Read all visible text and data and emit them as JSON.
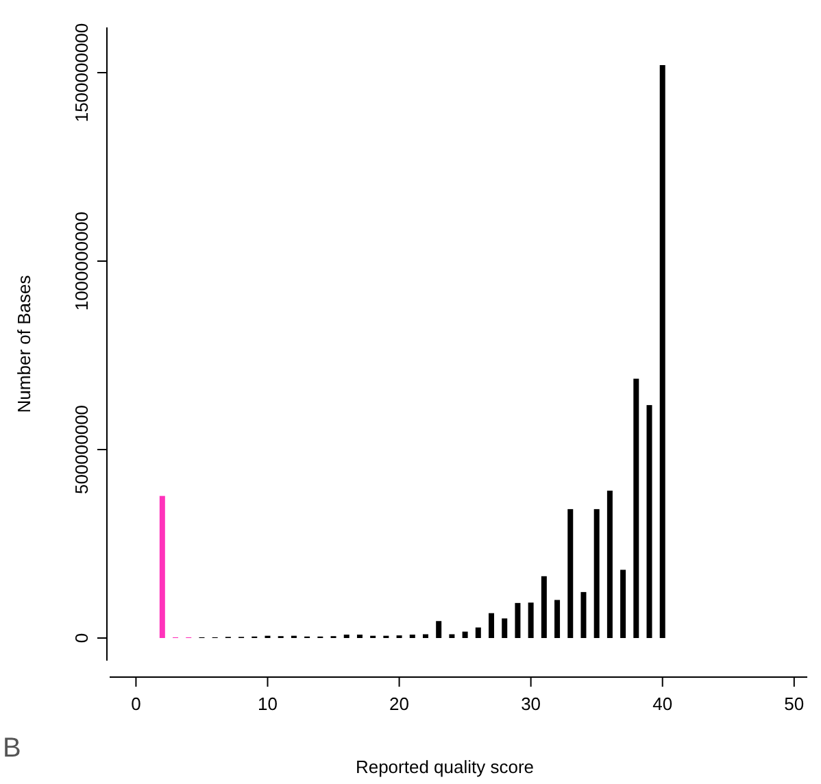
{
  "chart_data": {
    "type": "bar",
    "xlabel": "Reported quality score",
    "ylabel": "Number of Bases",
    "x": [
      2,
      3,
      4,
      5,
      6,
      7,
      8,
      9,
      10,
      11,
      12,
      13,
      14,
      15,
      16,
      17,
      18,
      19,
      20,
      21,
      22,
      23,
      24,
      25,
      26,
      27,
      28,
      29,
      30,
      31,
      32,
      33,
      34,
      35,
      36,
      37,
      38,
      39,
      40
    ],
    "values": [
      377000000,
      2000000,
      2000000,
      2000000,
      2000000,
      3000000,
      3000000,
      4000000,
      6000000,
      5000000,
      6000000,
      4000000,
      4000000,
      5000000,
      9000000,
      9000000,
      6000000,
      6000000,
      7000000,
      9000000,
      10000000,
      45000000,
      10000000,
      17000000,
      28000000,
      66000000,
      52000000,
      93000000,
      94000000,
      164000000,
      101000000,
      342000000,
      122000000,
      342000000,
      391000000,
      181000000,
      688000000,
      618000000,
      1520000000
    ],
    "colors": [
      "#ff33bb",
      "#ff33bb",
      "#ff33bb",
      "#000000",
      "#000000",
      "#000000",
      "#000000",
      "#000000",
      "#000000",
      "#000000",
      "#000000",
      "#000000",
      "#000000",
      "#000000",
      "#000000",
      "#000000",
      "#000000",
      "#000000",
      "#000000",
      "#000000",
      "#000000",
      "#000000",
      "#000000",
      "#000000",
      "#000000",
      "#000000",
      "#000000",
      "#000000",
      "#000000",
      "#000000",
      "#000000",
      "#000000",
      "#000000",
      "#000000",
      "#000000",
      "#000000",
      "#000000",
      "#000000",
      "#000000"
    ],
    "xlim": [
      -2,
      51
    ],
    "xticks": [
      0,
      10,
      20,
      30,
      40,
      50
    ],
    "ylim": [
      -60000000,
      1620000000
    ],
    "yticks": [
      0,
      500000000,
      1000000000,
      1500000000
    ],
    "annotations": [
      "B"
    ]
  }
}
